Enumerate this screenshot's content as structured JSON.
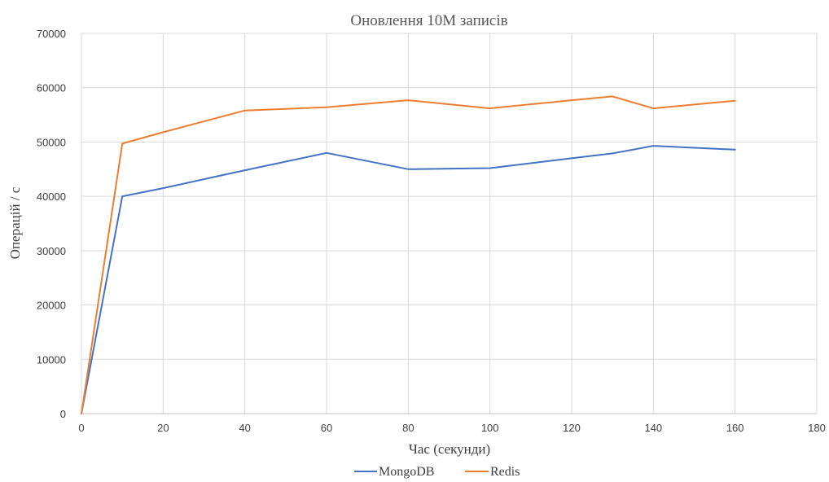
{
  "chart_data": {
    "type": "line",
    "title": "Оновлення 10М записів",
    "xlabel": "Час (секунди)",
    "ylabel": "Операцій / с",
    "xlim": [
      0,
      180
    ],
    "ylim": [
      0,
      70000
    ],
    "xticks": [
      0,
      20,
      40,
      60,
      80,
      100,
      120,
      140,
      160,
      180
    ],
    "yticks": [
      0,
      10000,
      20000,
      30000,
      40000,
      50000,
      60000,
      70000
    ],
    "grid": true,
    "legend_position": "bottom",
    "series": [
      {
        "name": "MongoDB",
        "color": "#4472c4",
        "x": [
          0,
          10,
          20,
          40,
          60,
          80,
          100,
          120,
          130,
          140,
          160
        ],
        "y": [
          0,
          40000,
          41500,
          44800,
          48000,
          45000,
          45200,
          47000,
          47900,
          49300,
          48600
        ]
      },
      {
        "name": "Redis",
        "color": "#ed7d31",
        "x": [
          0,
          10,
          20,
          40,
          60,
          80,
          100,
          120,
          130,
          140,
          160
        ],
        "y": [
          0,
          49700,
          51800,
          55800,
          56400,
          57700,
          56200,
          57700,
          58400,
          56200,
          57600
        ]
      }
    ]
  }
}
